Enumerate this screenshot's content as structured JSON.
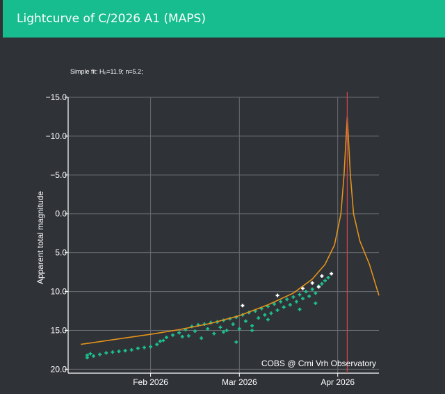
{
  "header": {
    "title": "Lightcurve of C/2026 A1 (MAPS)"
  },
  "fit_note": "Simple fit: H₀=11.9; n=5.2;",
  "watermark": "COBS @ Crni Vrh Observatory",
  "colors": {
    "header": "#17bd8f",
    "background": "#2f3237",
    "observations": "#1dbf8f",
    "observations_alt": "#ffffff",
    "fit_curve": "#e3931b",
    "perihelion_line": "#d0454c"
  },
  "chart_data": {
    "type": "scatter",
    "title": "",
    "xlabel": "",
    "ylabel": "Apparent total magnitude",
    "x_ticks": [
      "Feb 2026",
      "Mar 2026",
      "Apr 2026"
    ],
    "y_ticks": [
      "−15.0",
      "−10.0",
      "−5.0",
      "0.0",
      "5.0",
      "10.0",
      "15.0",
      "20.0"
    ],
    "ylim": [
      20.5,
      -15.0
    ],
    "y_inverted": true,
    "xlim": [
      "2026-01-06",
      "2026-04-14"
    ],
    "grid": true,
    "perihelion_date": "2026-04-04",
    "fit": {
      "name": "Simple fit",
      "points": [
        [
          "2026-01-10",
          16.8
        ],
        [
          "2026-01-20",
          16.2
        ],
        [
          "2026-02-01",
          15.5
        ],
        [
          "2026-02-10",
          14.9
        ],
        [
          "2026-02-20",
          14.1
        ],
        [
          "2026-03-01",
          13.1
        ],
        [
          "2026-03-10",
          11.7
        ],
        [
          "2026-03-18",
          10.2
        ],
        [
          "2026-03-24",
          8.4
        ],
        [
          "2026-03-28",
          6.5
        ],
        [
          "2026-03-31",
          4.0
        ],
        [
          "2026-04-02",
          0.0
        ],
        [
          "2026-04-03",
          -5.0
        ],
        [
          "2026-04-04",
          -12.5
        ],
        [
          "2026-04-05",
          -5.0
        ],
        [
          "2026-04-06",
          0.0
        ],
        [
          "2026-04-08",
          3.5
        ],
        [
          "2026-04-11",
          6.5
        ],
        [
          "2026-04-14",
          10.5
        ]
      ]
    },
    "series": [
      {
        "marker": "green-cross",
        "points": [
          [
            "2026-01-12",
            18.2
          ],
          [
            "2026-01-12",
            18.5
          ],
          [
            "2026-01-13",
            18.0
          ],
          [
            "2026-01-14",
            18.3
          ],
          [
            "2026-01-16",
            18.1
          ],
          [
            "2026-01-18",
            17.9
          ],
          [
            "2026-01-20",
            17.8
          ],
          [
            "2026-01-22",
            17.7
          ],
          [
            "2026-01-24",
            17.6
          ],
          [
            "2026-01-26",
            17.5
          ],
          [
            "2026-01-28",
            17.3
          ],
          [
            "2026-01-30",
            17.2
          ],
          [
            "2026-02-01",
            17.1
          ],
          [
            "2026-02-03",
            16.8
          ],
          [
            "2026-02-04",
            16.4
          ],
          [
            "2026-02-06",
            15.9
          ],
          [
            "2026-02-08",
            15.6
          ],
          [
            "2026-02-10",
            15.3
          ],
          [
            "2026-02-12",
            14.9
          ],
          [
            "2026-02-13",
            15.7
          ],
          [
            "2026-02-14",
            14.5
          ],
          [
            "2026-02-15",
            15.1
          ],
          [
            "2026-02-16",
            14.3
          ],
          [
            "2026-02-17",
            16.0
          ],
          [
            "2026-02-18",
            14.2
          ],
          [
            "2026-02-19",
            14.8
          ],
          [
            "2026-02-20",
            14.0
          ],
          [
            "2026-02-21",
            15.4
          ],
          [
            "2026-02-22",
            13.9
          ],
          [
            "2026-02-23",
            14.6
          ],
          [
            "2026-02-24",
            13.7
          ],
          [
            "2026-02-25",
            15.0
          ],
          [
            "2026-02-26",
            13.5
          ],
          [
            "2026-02-27",
            14.2
          ],
          [
            "2026-02-28",
            13.3
          ],
          [
            "2026-03-01",
            14.8
          ],
          [
            "2026-03-02",
            13.0
          ],
          [
            "2026-03-03",
            13.8
          ],
          [
            "2026-03-04",
            12.7
          ],
          [
            "2026-03-05",
            14.4
          ],
          [
            "2026-03-06",
            12.5
          ],
          [
            "2026-03-07",
            13.4
          ],
          [
            "2026-03-08",
            12.2
          ],
          [
            "2026-03-09",
            13.0
          ],
          [
            "2026-03-10",
            11.9
          ],
          [
            "2026-03-11",
            12.8
          ],
          [
            "2026-03-12",
            11.6
          ],
          [
            "2026-03-13",
            12.4
          ],
          [
            "2026-03-14",
            11.3
          ],
          [
            "2026-03-15",
            12.0
          ],
          [
            "2026-03-16",
            11.0
          ],
          [
            "2026-03-17",
            11.7
          ],
          [
            "2026-03-18",
            10.7
          ],
          [
            "2026-03-19",
            11.3
          ],
          [
            "2026-03-20",
            10.4
          ],
          [
            "2026-03-21",
            10.9
          ],
          [
            "2026-03-22",
            10.0
          ],
          [
            "2026-03-23",
            10.6
          ],
          [
            "2026-03-24",
            9.7
          ],
          [
            "2026-03-25",
            10.2
          ],
          [
            "2026-03-26",
            9.3
          ],
          [
            "2026-03-27",
            9.0
          ],
          [
            "2026-03-28",
            8.6
          ],
          [
            "2026-03-29",
            8.2
          ],
          [
            "2026-02-05",
            16.3
          ],
          [
            "2026-02-11",
            15.8
          ],
          [
            "2026-02-24",
            15.2
          ],
          [
            "2026-03-05",
            15.0
          ],
          [
            "2026-02-28",
            16.5
          ],
          [
            "2026-03-10",
            13.6
          ],
          [
            "2026-03-20",
            12.3
          ],
          [
            "2026-03-25",
            11.5
          ]
        ]
      },
      {
        "marker": "white-cross",
        "points": [
          [
            "2026-03-02",
            11.8
          ],
          [
            "2026-03-13",
            10.5
          ],
          [
            "2026-03-21",
            9.6
          ],
          [
            "2026-03-24",
            8.9
          ],
          [
            "2026-03-26",
            9.4
          ],
          [
            "2026-03-27",
            8.0
          ],
          [
            "2026-03-30",
            7.7
          ]
        ]
      }
    ]
  }
}
